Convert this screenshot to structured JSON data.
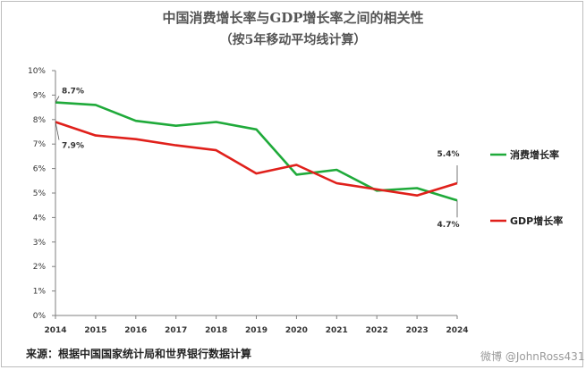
{
  "title": "中国消费增长率与GDP增长率之间的相关性",
  "subtitle": "（按5年移动平均线计算）",
  "source": "来源：根据中国国家统计局和世界银行数据计算",
  "watermark": "微博 @JohnRoss431",
  "chart_data": {
    "type": "line",
    "x": [
      "2014",
      "2015",
      "2016",
      "2017",
      "2018",
      "2019",
      "2020",
      "2021",
      "2022",
      "2023",
      "2024"
    ],
    "ylim": [
      0,
      10
    ],
    "yticks": [
      "0%",
      "1%",
      "2%",
      "3%",
      "4%",
      "5%",
      "6%",
      "7%",
      "8%",
      "9%",
      "10%"
    ],
    "legend_position": "right",
    "grid": false,
    "series": [
      {
        "name": "消费增长率",
        "color": "#1faa3a",
        "values": [
          8.7,
          8.6,
          7.95,
          7.75,
          7.9,
          7.6,
          5.75,
          5.95,
          5.1,
          5.2,
          4.7
        ]
      },
      {
        "name": "GDP增长率",
        "color": "#e0201b",
        "values": [
          7.9,
          7.35,
          7.2,
          6.95,
          6.75,
          5.8,
          6.15,
          5.4,
          5.15,
          4.9,
          5.4
        ]
      }
    ],
    "annotations": [
      {
        "text": "8.7%",
        "series": 0,
        "index": 0
      },
      {
        "text": "7.9%",
        "series": 1,
        "index": 0
      },
      {
        "text": "5.4%",
        "series": 1,
        "index": 10
      },
      {
        "text": "4.7%",
        "series": 0,
        "index": 10
      }
    ]
  }
}
